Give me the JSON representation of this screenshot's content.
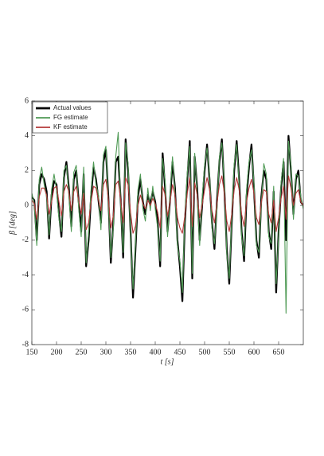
{
  "chart_data": {
    "type": "line",
    "xlabel": "t [s]",
    "ylabel": "β [deg]",
    "xlim": [
      150,
      700
    ],
    "ylim": [
      -8,
      6
    ],
    "xticks": [
      150,
      200,
      250,
      300,
      350,
      400,
      450,
      500,
      550,
      600,
      650
    ],
    "yticks": [
      -8,
      -6,
      -4,
      -2,
      0,
      2,
      4,
      6
    ],
    "legend": "upper left",
    "x": [
      150,
      155,
      160,
      165,
      170,
      175,
      180,
      185,
      190,
      195,
      200,
      205,
      210,
      215,
      220,
      225,
      230,
      235,
      240,
      245,
      250,
      255,
      260,
      265,
      270,
      275,
      280,
      285,
      290,
      295,
      300,
      305,
      310,
      315,
      320,
      325,
      330,
      335,
      340,
      345,
      350,
      355,
      360,
      365,
      370,
      375,
      380,
      385,
      390,
      395,
      400,
      405,
      410,
      415,
      420,
      425,
      430,
      435,
      440,
      445,
      450,
      455,
      460,
      465,
      470,
      475,
      480,
      485,
      490,
      495,
      500,
      505,
      510,
      515,
      520,
      525,
      530,
      535,
      540,
      545,
      550,
      555,
      560,
      565,
      570,
      575,
      580,
      585,
      590,
      595,
      600,
      605,
      610,
      615,
      620,
      625,
      630,
      635,
      640,
      645,
      650,
      655,
      660,
      665,
      670,
      675,
      680,
      685,
      690,
      695,
      700
    ],
    "series": [
      {
        "name": "Actual values",
        "color": "#000000",
        "values": [
          0.5,
          0.3,
          -2.0,
          1.2,
          1.8,
          1.5,
          0.8,
          -1.9,
          0.6,
          1.4,
          1.2,
          -0.5,
          -1.8,
          1.6,
          2.5,
          1.0,
          -1.2,
          1.5,
          2.0,
          0.2,
          -1.5,
          1.8,
          -3.5,
          -2.0,
          0.5,
          2.2,
          1.5,
          0.3,
          -1.0,
          2.5,
          3.2,
          0.5,
          -3.3,
          -1.0,
          2.5,
          2.8,
          0.3,
          -3.0,
          3.8,
          2.0,
          -1.5,
          -5.3,
          -2.5,
          0.5,
          1.5,
          0.2,
          -0.5,
          0.6,
          0.1,
          0.8,
          0.2,
          -1.0,
          -3.5,
          3.0,
          1.0,
          -1.5,
          0.3,
          2.5,
          1.0,
          -2.0,
          -3.5,
          -5.5,
          -1.0,
          1.5,
          3.7,
          -4.2,
          2.8,
          1.0,
          -2.0,
          0.0,
          2.0,
          3.5,
          1.5,
          -1.0,
          -2.5,
          0.2,
          2.5,
          3.8,
          1.0,
          -2.5,
          -4.5,
          -1.0,
          2.0,
          3.7,
          1.5,
          -1.5,
          -3.2,
          0.5,
          2.2,
          3.5,
          1.0,
          -2.0,
          -3.0,
          0.5,
          2.0,
          1.5,
          -1.5,
          -2.5,
          0.8,
          -5.0,
          -1.5,
          1.0,
          2.5,
          -2.0,
          4.0,
          2.0,
          -0.5,
          1.5,
          2.0,
          0.2,
          0.0
        ]
      },
      {
        "name": "FG estimate",
        "color": "#4f9a55",
        "values": [
          0.7,
          0.1,
          -2.3,
          1.5,
          2.2,
          1.2,
          0.5,
          -1.7,
          0.9,
          1.8,
          0.9,
          -0.8,
          -1.5,
          2.0,
          2.3,
          0.7,
          -1.5,
          1.9,
          2.3,
          -0.2,
          -1.8,
          2.2,
          -3.3,
          -1.6,
          0.9,
          2.5,
          1.2,
          0.6,
          -1.4,
          2.9,
          3.4,
          0.2,
          -3.0,
          -1.3,
          2.8,
          4.2,
          0.0,
          -2.7,
          3.6,
          2.4,
          -1.8,
          -4.8,
          -2.2,
          0.9,
          1.8,
          -0.2,
          -0.9,
          1.0,
          -0.3,
          1.1,
          -0.2,
          -1.3,
          -3.2,
          2.7,
          1.4,
          -1.8,
          0.6,
          2.8,
          0.7,
          -2.3,
          -3.2,
          -5.0,
          -0.7,
          1.9,
          3.4,
          -3.9,
          3.0,
          0.6,
          -2.3,
          0.4,
          2.3,
          3.3,
          1.8,
          -1.3,
          -2.2,
          -0.2,
          2.8,
          3.6,
          1.3,
          -2.8,
          -4.2,
          -0.7,
          2.4,
          3.5,
          1.2,
          -1.8,
          -2.9,
          0.9,
          2.5,
          3.2,
          1.3,
          -2.3,
          -2.7,
          0.1,
          2.4,
          1.8,
          -1.8,
          -2.2,
          1.1,
          -4.5,
          -1.8,
          1.3,
          2.7,
          -6.2,
          3.7,
          2.3,
          -0.8,
          1.8,
          1.7,
          0.5,
          -0.2
        ]
      },
      {
        "name": "KF estimate",
        "color": "#b5393a",
        "values": [
          0.3,
          0.1,
          -0.8,
          0.5,
          1.0,
          1.0,
          0.6,
          -0.5,
          0.2,
          1.0,
          1.1,
          0.2,
          -0.6,
          0.8,
          1.2,
          0.8,
          -0.3,
          0.8,
          1.1,
          0.3,
          -0.5,
          0.7,
          -1.4,
          -1.0,
          0.2,
          1.1,
          1.0,
          0.3,
          -0.3,
          1.2,
          1.5,
          0.4,
          -1.3,
          -0.6,
          1.2,
          1.4,
          0.3,
          -1.0,
          1.6,
          1.2,
          -0.4,
          -1.6,
          -1.2,
          0.0,
          0.6,
          0.1,
          -0.2,
          0.3,
          0.0,
          0.4,
          0.1,
          -0.4,
          -1.3,
          1.1,
          0.6,
          -0.6,
          0.2,
          1.2,
          0.6,
          -0.7,
          -1.3,
          -1.6,
          -0.6,
          0.7,
          1.6,
          -1.2,
          1.3,
          0.6,
          -0.7,
          0.0,
          0.9,
          1.6,
          0.9,
          -0.3,
          -1.0,
          0.1,
          1.2,
          1.7,
          0.7,
          -0.9,
          -1.5,
          -0.5,
          0.9,
          1.6,
          0.9,
          -0.5,
          -1.2,
          0.2,
          1.0,
          1.5,
          0.7,
          -0.7,
          -1.1,
          0.2,
          0.9,
          0.8,
          -0.5,
          -1.0,
          0.3,
          -1.5,
          -0.7,
          0.4,
          1.1,
          -0.8,
          1.7,
          1.0,
          0.0,
          0.7,
          0.9,
          0.2,
          0.0
        ]
      }
    ]
  }
}
